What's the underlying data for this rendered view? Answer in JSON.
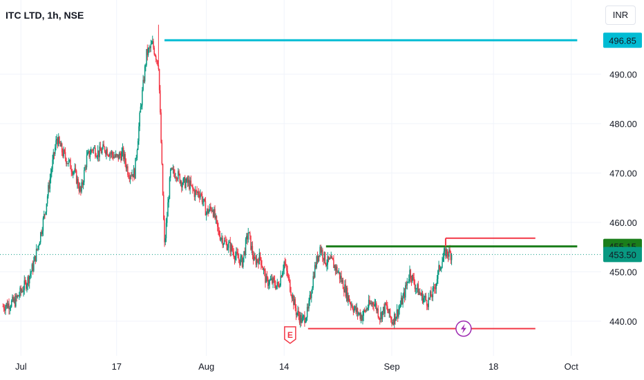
{
  "title": "ITC LTD, 1h, NSE",
  "currency": "INR",
  "colors": {
    "up": "#089981",
    "down": "#f23645",
    "resistance_top": "#00bcd4",
    "neckline": "#1b7e1b",
    "support": "#f23645",
    "breakout_marker": "#f23645",
    "current_price_tag": "#089981",
    "flash_icon": "#9c27b0",
    "earnings_icon": "#f23645"
  },
  "chart_data": {
    "type": "candlestick",
    "ylim": [
      433,
      505
    ],
    "y_ticks": [
      440,
      450,
      460,
      470,
      480,
      490
    ],
    "x_ticks": [
      {
        "label": "Jul",
        "day": 1
      },
      {
        "label": "17",
        "day": 17
      },
      {
        "label": "Aug",
        "day": 32
      },
      {
        "label": "14",
        "day": 45
      },
      {
        "label": "Sep",
        "day": 63
      },
      {
        "label": "18",
        "day": 80
      },
      {
        "label": "Oct",
        "day": 93
      }
    ],
    "anchors": [
      [
        -2,
        443
      ],
      [
        0,
        444
      ],
      [
        2,
        448
      ],
      [
        3,
        451
      ],
      [
        4,
        456
      ],
      [
        5,
        462
      ],
      [
        6,
        470
      ],
      [
        7,
        477
      ],
      [
        8,
        474
      ],
      [
        9,
        472
      ],
      [
        10,
        470
      ],
      [
        11,
        466
      ],
      [
        12,
        473
      ],
      [
        13,
        475
      ],
      [
        14,
        474
      ],
      [
        15,
        475
      ],
      [
        16,
        474
      ],
      [
        17,
        473
      ],
      [
        18,
        474
      ],
      [
        19,
        470
      ],
      [
        20,
        470
      ],
      [
        21,
        483
      ],
      [
        22,
        494
      ],
      [
        23,
        496
      ],
      [
        24,
        492
      ],
      [
        25,
        455
      ],
      [
        26,
        470
      ],
      [
        27,
        470
      ],
      [
        28,
        468
      ],
      [
        29,
        468
      ],
      [
        30,
        466
      ],
      [
        31,
        466
      ],
      [
        32,
        462
      ],
      [
        33,
        463
      ],
      [
        34,
        458
      ],
      [
        35,
        456
      ],
      [
        36,
        455
      ],
      [
        37,
        453
      ],
      [
        38,
        452
      ],
      [
        39,
        458
      ],
      [
        40,
        452
      ],
      [
        41,
        453
      ],
      [
        42,
        448
      ],
      [
        43,
        448
      ],
      [
        44,
        447
      ],
      [
        45,
        452
      ],
      [
        46,
        447
      ],
      [
        47,
        442
      ],
      [
        48,
        440
      ],
      [
        49,
        442
      ],
      [
        50,
        450
      ],
      [
        51,
        455
      ],
      [
        52,
        452
      ],
      [
        53,
        452
      ],
      [
        54,
        450
      ],
      [
        55,
        447
      ],
      [
        56,
        444
      ],
      [
        57,
        442
      ],
      [
        58,
        441
      ],
      [
        59,
        443
      ],
      [
        60,
        444
      ],
      [
        61,
        441
      ],
      [
        62,
        443
      ],
      [
        63,
        440
      ],
      [
        64,
        442
      ],
      [
        65,
        445
      ],
      [
        66,
        450
      ],
      [
        67,
        447
      ],
      [
        68,
        445
      ],
      [
        69,
        444
      ],
      [
        70,
        446
      ],
      [
        71,
        451
      ],
      [
        72,
        454
      ],
      [
        73,
        453.5
      ]
    ],
    "horizontal_lines": [
      {
        "name": "resistance",
        "price": 496.85,
        "from_day": 25,
        "to_day": 94,
        "color": "resistance_top",
        "label": "496.85"
      },
      {
        "name": "neckline",
        "price": 455.15,
        "from_day": 52,
        "to_day": 94,
        "color": "neckline",
        "label": "455.15"
      },
      {
        "name": "support",
        "price": 438.5,
        "from_day": 49,
        "to_day": 87,
        "color": "support"
      },
      {
        "name": "breakout-marker",
        "price": 456.8,
        "from_day": 72,
        "to_day": 87,
        "color": "breakout_marker"
      }
    ],
    "current_price": {
      "value": 453.5,
      "label": "453.50"
    },
    "markers": [
      {
        "name": "earnings",
        "text": "E",
        "day": 46,
        "price": 437.2
      },
      {
        "name": "flash",
        "day": 75,
        "price": 438.5
      }
    ]
  }
}
